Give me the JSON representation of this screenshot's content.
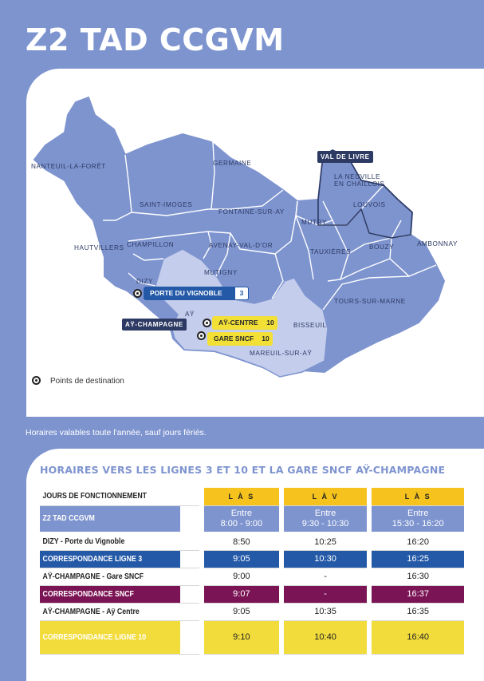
{
  "title": "Z2 TAD CCGVM",
  "map": {
    "communes": {
      "nanteuil": "NANTEUIL-LA-FORÊT",
      "germaine": "GERMAINE",
      "val_de_livre": "VAL DE LIVRE",
      "la_neuville_1": "LA NEUVILLE",
      "la_neuville_2": "EN CHAILLOIS",
      "saint_imoges": "SAINT-IMOGES",
      "fontaine": "FONTAINE-SUR-AY",
      "louvois": "LOUVOIS",
      "mutry": "MUTRY",
      "hautvillers": "HAUTVILLERS",
      "champillon": "CHAMPILLON",
      "avenay": "AVENAY-VAL-D'OR",
      "tauxieres": "TAUXIÈRES",
      "bouzy": "BOUZY",
      "ambonnay": "AMBONNAY",
      "mutigny": "MUTIGNY",
      "dizy": "DIZY",
      "ay": "AŸ",
      "ay_champagne": "AŸ-CHAMPAGNE",
      "tours": "TOURS-SUR-MARNE",
      "bisseuil": "BISSEUIL",
      "mareuil": "MAREUIL-SUR-AŸ"
    },
    "stops": {
      "porte": {
        "label": "PORTE DU VIGNOBLE",
        "line": "3"
      },
      "ay_centre": {
        "label": "AŸ-CENTRE",
        "line": "10"
      },
      "gare": {
        "label": "GARE SNCF",
        "line": "10"
      }
    },
    "legend": "Points de destination"
  },
  "note": "Horaires valables toute l'année, sauf jours fériés.",
  "section_title": "HORAIRES VERS LES LIGNES 3 ET 10 ET LA GARE SNCF AŸ-CHAMPAGNE",
  "table": {
    "header": {
      "label": "JOURS DE FONCTIONNEMENT",
      "days": [
        "L À S",
        "L À V",
        "L À S"
      ]
    },
    "rows": [
      {
        "label": "Z2 TAD CCGVM",
        "c1a": "Entre",
        "c1b": "8:00 - 9:00",
        "c2a": "Entre",
        "c2b": "9:30 - 10:30",
        "c3a": "Entre",
        "c3b": "15:30 - 16:20"
      },
      {
        "label": "DIZY - Porte du Vignoble",
        "v": [
          "8:50",
          "10:25",
          "16:20"
        ]
      },
      {
        "label": "CORRESPONDANCE LIGNE 3",
        "v": [
          "9:05",
          "10:30",
          "16:25"
        ]
      },
      {
        "label": "AŸ-CHAMPAGNE - Gare SNCF",
        "v": [
          "9:00",
          "-",
          "16:30"
        ]
      },
      {
        "label": "CORRESPONDANCE SNCF",
        "v": [
          "9:07",
          "-",
          "16:37"
        ]
      },
      {
        "label": "AŸ-CHAMPAGNE - Aÿ Centre",
        "v": [
          "9:05",
          "10:35",
          "16:35"
        ]
      },
      {
        "label": "CORRESPONDANCE LIGNE 10",
        "v": [
          "9:10",
          "10:40",
          "16:40"
        ]
      }
    ]
  },
  "colors": {
    "brand": "#7e94cf",
    "line3": "#2459a8",
    "sncf": "#7b1455",
    "line10": "#f2dc3c",
    "header": "#f6c21d"
  }
}
